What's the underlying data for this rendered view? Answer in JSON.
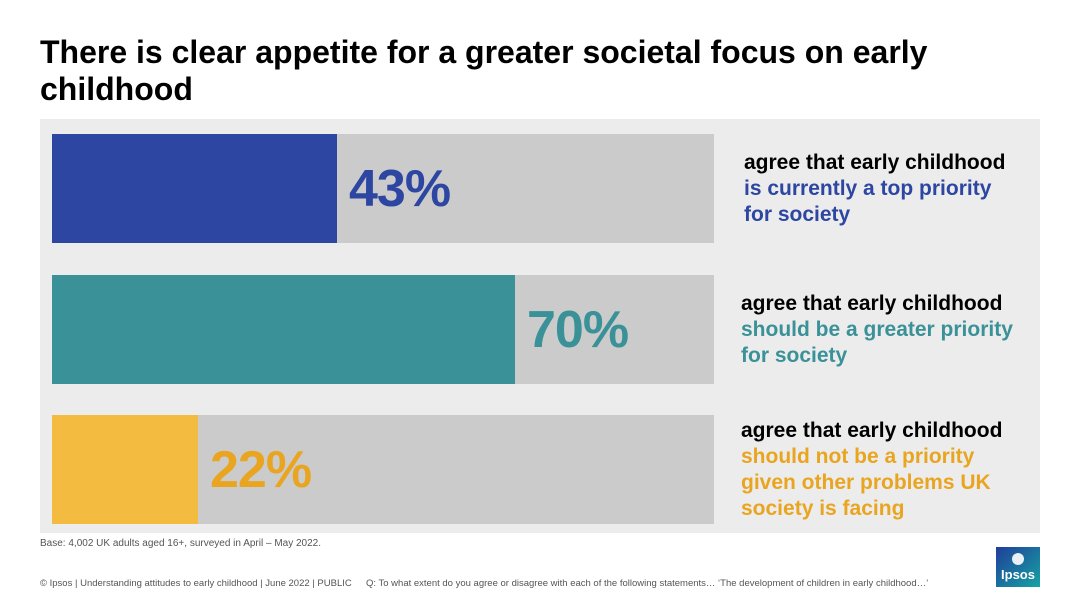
{
  "title": "There is clear appetite for a greater societal focus on early childhood",
  "colors": {
    "blue": "#2c46a2",
    "teal": "#3a9197",
    "yellow": "#f3bc41",
    "yellow_text": "#e9a520",
    "track": "#cbcbcb",
    "panel": "#ececec"
  },
  "chart_data": {
    "type": "bar",
    "orientation": "horizontal",
    "xlim": [
      0,
      100
    ],
    "values": [
      43,
      70,
      22
    ],
    "value_labels": [
      "43%",
      "70%",
      "22%"
    ],
    "labels": [
      {
        "lead": "agree that early childhood",
        "highlight": "is currently a top priority for society"
      },
      {
        "lead": "agree that early childhood",
        "highlight": "should be a greater priority for society"
      },
      {
        "lead": "agree that early childhood",
        "highlight": "should not be a priority given other problems UK society is facing"
      }
    ],
    "bar_colors": [
      "#2c46a2",
      "#3a9197",
      "#f3bc41"
    ],
    "label_colors": [
      "#2c46a2",
      "#3a9197",
      "#e9a520"
    ]
  },
  "base": "Base: 4,002 UK adults aged 16+, surveyed in April – May 2022.",
  "footer": {
    "left": "© Ipsos | Understanding attitudes to early childhood | June 2022 | PUBLIC",
    "question": "Q: To what extent do you agree or disagree with each of the following statements… ‘The development of children in early childhood…’"
  },
  "logo": {
    "text": "Ipsos",
    "icon": "ipsos-logo"
  }
}
